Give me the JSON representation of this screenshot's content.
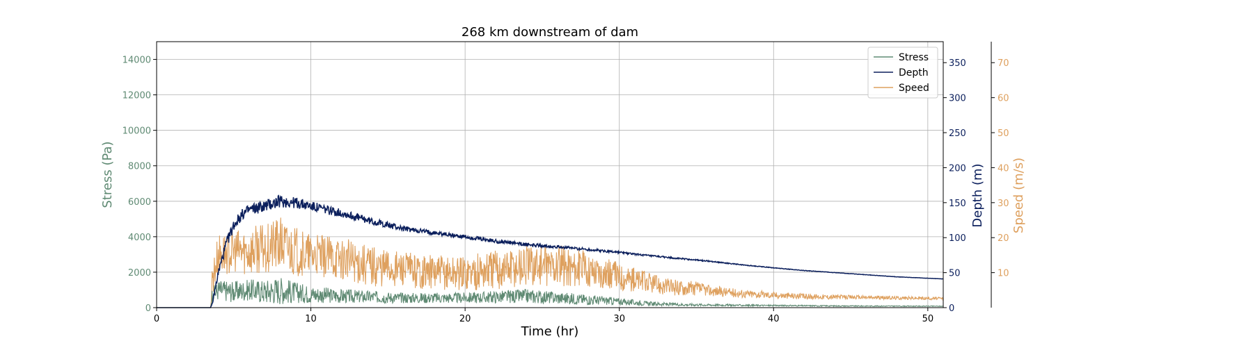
{
  "chart_data": {
    "type": "line",
    "title": "268 km downstream of dam",
    "xlabel": "Time (hr)",
    "xlim": [
      0,
      51
    ],
    "xticks": [
      0,
      10,
      20,
      30,
      40,
      50
    ],
    "grid": true,
    "legend": {
      "placement": "top-right",
      "entries": [
        "Stress",
        "Depth",
        "Speed"
      ]
    },
    "axes": {
      "stress": {
        "label": "Stress (Pa)",
        "ylim": [
          0,
          15000
        ],
        "ticks": [
          0,
          2000,
          4000,
          6000,
          8000,
          10000,
          12000,
          14000
        ],
        "color": "#5f8a73",
        "side": "left"
      },
      "depth": {
        "label": "Depth (m)",
        "ylim": [
          0,
          380
        ],
        "ticks": [
          0,
          50,
          100,
          150,
          200,
          250,
          300,
          350
        ],
        "color": "#0b1f5c",
        "side": "right"
      },
      "speed": {
        "label": "Speed (m/s)",
        "ylim": [
          0,
          76
        ],
        "ticks": [
          10,
          20,
          30,
          40,
          50,
          60,
          70
        ],
        "color": "#dea05e",
        "side": "right-outer"
      }
    },
    "series": [
      {
        "name": "Stress",
        "axis": "stress",
        "color": "#5f8a73",
        "x": [
          0,
          3.5,
          3.6,
          4,
          5,
          6,
          7,
          8,
          9,
          10,
          12,
          14,
          16,
          18,
          20,
          22,
          24,
          26,
          28,
          30,
          32,
          34,
          36,
          38,
          40,
          45,
          51
        ],
        "y": [
          0,
          0,
          700,
          1000,
          900,
          1000,
          900,
          1000,
          850,
          750,
          650,
          600,
          550,
          550,
          550,
          600,
          650,
          550,
          450,
          350,
          220,
          170,
          150,
          130,
          120,
          90,
          80
        ],
        "noise": [
          0,
          0,
          400,
          600,
          600,
          600,
          700,
          800,
          600,
          500,
          400,
          350,
          300,
          300,
          300,
          350,
          400,
          350,
          300,
          200,
          120,
          80,
          60,
          50,
          40,
          30,
          20
        ]
      },
      {
        "name": "Depth",
        "axis": "depth",
        "color": "#0b1f5c",
        "x": [
          0,
          3.5,
          3.6,
          4,
          4.5,
          5,
          5.5,
          6,
          7,
          8,
          9,
          10,
          12,
          14,
          16,
          18,
          20,
          22,
          24,
          26,
          28,
          30,
          32,
          34,
          36,
          38,
          40,
          42,
          44,
          46,
          48,
          51
        ],
        "y": [
          0,
          0,
          5,
          50,
          90,
          118,
          132,
          140,
          145,
          152,
          150,
          145,
          135,
          123,
          113,
          107,
          101,
          95,
          90,
          87,
          83,
          79,
          74,
          70,
          66,
          61,
          57,
          53,
          50,
          47,
          44,
          41
        ],
        "noise": [
          0,
          0,
          2,
          6,
          8,
          8,
          8,
          8,
          9,
          9,
          8,
          7,
          6,
          5,
          4,
          3,
          3,
          3,
          2.5,
          2,
          2,
          1.5,
          1.2,
          1,
          0.8,
          0.6,
          0.5,
          0.4,
          0.3,
          0.3,
          0.2,
          0.2
        ]
      },
      {
        "name": "Speed",
        "axis": "speed",
        "color": "#dea05e",
        "x": [
          0,
          3.5,
          3.6,
          4,
          5,
          6,
          7,
          8,
          9,
          10,
          12,
          14,
          16,
          18,
          20,
          22,
          24,
          26,
          28,
          30,
          32,
          33,
          35,
          36,
          38,
          40,
          42,
          45,
          48,
          51
        ],
        "y": [
          0,
          0,
          8,
          15,
          16,
          16,
          17,
          18,
          16,
          15,
          14,
          12,
          11,
          10,
          10,
          11,
          12,
          12,
          11,
          9,
          7,
          6,
          5.5,
          4.8,
          4,
          3.6,
          3.2,
          3,
          2.8,
          2.6
        ],
        "noise": [
          0,
          0,
          5,
          6,
          6,
          7,
          7,
          8,
          7,
          6,
          6,
          6,
          5,
          5,
          5,
          6,
          6,
          6,
          5,
          4,
          3,
          2.5,
          2,
          1.5,
          1.2,
          1,
          0.8,
          0.6,
          0.5,
          0.4
        ]
      }
    ]
  }
}
